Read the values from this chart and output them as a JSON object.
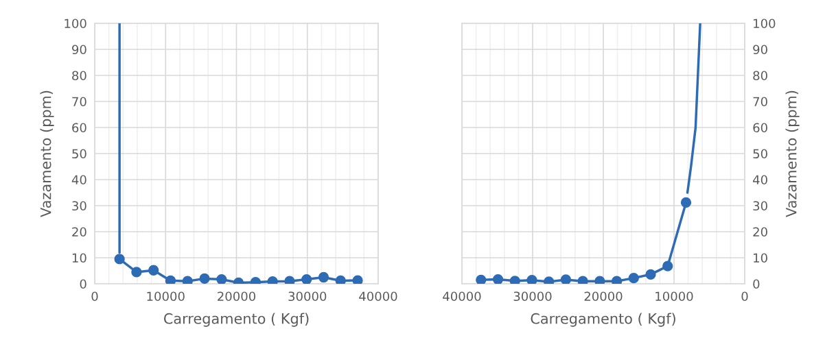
{
  "chart_data": [
    {
      "type": "line",
      "xlabel": "Carregamento ( Kgf)",
      "ylabel": "Vazamento (ppm)",
      "xlim": [
        0,
        40000
      ],
      "xticks": [
        0,
        10000,
        20000,
        30000,
        40000
      ],
      "ylim": [
        0,
        100
      ],
      "yticks": [
        0,
        10,
        20,
        30,
        40,
        50,
        60,
        70,
        80,
        90,
        100
      ],
      "grid": true,
      "legend": false,
      "marker": "circle",
      "line_style": "solid",
      "series": [
        {
          "color": "#2e6bb5",
          "type": "line",
          "marker": "none",
          "x": [
            3500,
            3500
          ],
          "values": [
            100,
            12
          ]
        },
        {
          "color": "#2e6bb5",
          "x": [
            3500,
            5900,
            8300,
            10700,
            13100,
            15500,
            17900,
            20300,
            22700,
            25100,
            27500,
            29900,
            32300,
            34700,
            37100
          ],
          "values": [
            9.5,
            4.5,
            5.2,
            1.2,
            1.0,
            2.0,
            1.7,
            0.4,
            0.6,
            0.9,
            1.0,
            1.7,
            2.5,
            1.2,
            1.3
          ]
        }
      ]
    },
    {
      "type": "line",
      "xlabel": "Carregamento ( Kgf)",
      "ylabel": "Vazamento (ppm)",
      "xlim": [
        40000,
        0
      ],
      "xticks": [
        0,
        10000,
        20000,
        30000,
        40000
      ],
      "ylim": [
        0,
        100
      ],
      "yticks": [
        0,
        10,
        20,
        30,
        40,
        50,
        60,
        70,
        80,
        90,
        100
      ],
      "grid": true,
      "legend": false,
      "marker": "circle",
      "line_style": "solid",
      "series": [
        {
          "color": "#2e6bb5",
          "type": "line",
          "marker": "none",
          "x": [
            8100,
            7600,
            6950,
            6300
          ],
          "values": [
            35,
            45,
            60,
            100
          ]
        },
        {
          "color": "#2e6bb5",
          "x": [
            37300,
            34900,
            32500,
            30100,
            27700,
            25300,
            22900,
            20500,
            18100,
            15700,
            13300,
            10900,
            8300
          ],
          "values": [
            1.5,
            1.7,
            1.1,
            1.4,
            0.8,
            1.6,
            1.0,
            1.0,
            1.0,
            2.2,
            3.6,
            6.8,
            31.2
          ]
        }
      ]
    }
  ]
}
